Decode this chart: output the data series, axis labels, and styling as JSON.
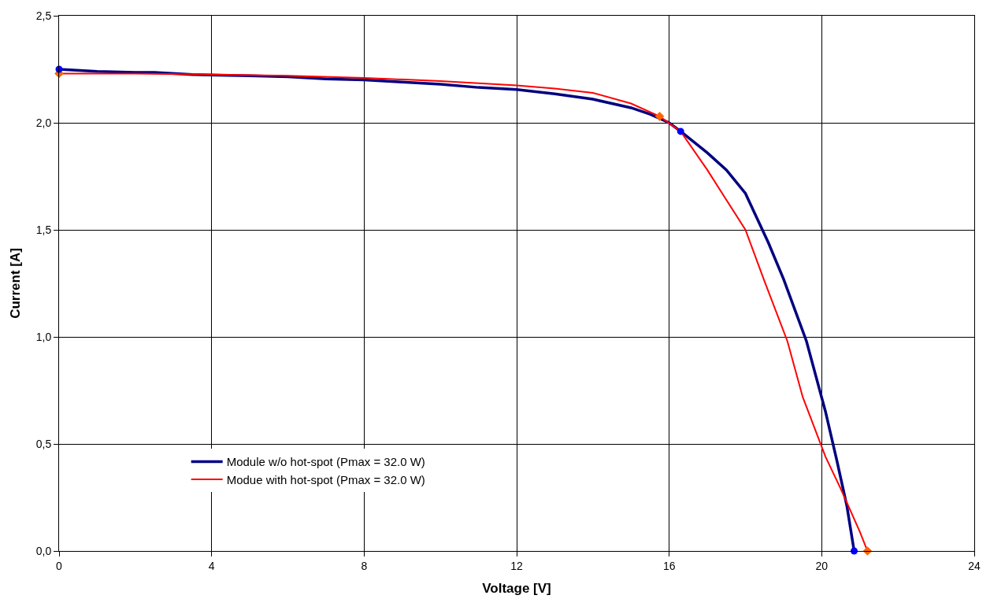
{
  "chart_data": {
    "type": "line",
    "xlabel": "Voltage [V]",
    "ylabel": "Current [A]",
    "xlim": [
      0,
      24
    ],
    "xticks": [
      0,
      4,
      8,
      12,
      16,
      20,
      24
    ],
    "ylim": [
      0,
      2.5
    ],
    "yticks": [
      {
        "value": 0,
        "label": "0,0"
      },
      {
        "value": 0.5,
        "label": "0,5"
      },
      {
        "value": 1,
        "label": "1,0"
      },
      {
        "value": 1.5,
        "label": "1,5"
      },
      {
        "value": 2,
        "label": "2,0"
      },
      {
        "value": 2.5,
        "label": "2,5"
      }
    ],
    "grid": true,
    "legend": "bottom left",
    "marker": "none",
    "line_style": "solid",
    "series": [
      {
        "name": "Module w/o hot-spot (Pmax = 32.0 W)",
        "color": "#000080",
        "x": [
          0,
          1,
          2,
          2.5,
          3.5,
          5,
          6,
          7,
          8,
          9,
          10,
          11,
          12,
          13,
          14,
          15,
          15.5,
          16,
          16.3,
          17,
          17.5,
          18,
          18.6,
          19,
          19.6,
          20.1,
          20.4,
          20.66,
          20.85
        ],
        "values": [
          2.25,
          2.24,
          2.235,
          2.235,
          2.225,
          2.22,
          2.215,
          2.205,
          2.2,
          2.19,
          2.18,
          2.165,
          2.155,
          2.135,
          2.11,
          2.07,
          2.04,
          2.0,
          1.96,
          1.86,
          1.78,
          1.67,
          1.44,
          1.27,
          0.98,
          0.65,
          0.42,
          0.21,
          0
        ]
      },
      {
        "name": "Modue with hot-spot (Pmax = 32.0 W)",
        "color": "#ff0000",
        "x": [
          0,
          2,
          4,
          6,
          8,
          10,
          11,
          12,
          13,
          14,
          15,
          15.75,
          16.3,
          17,
          17.5,
          18,
          18.5,
          19.1,
          19.5,
          20.1,
          20.5,
          21,
          21.2
        ],
        "values": [
          2.23,
          2.23,
          2.225,
          2.22,
          2.21,
          2.195,
          2.185,
          2.175,
          2.16,
          2.14,
          2.09,
          2.03,
          1.96,
          1.78,
          1.64,
          1.5,
          1.26,
          0.98,
          0.72,
          0.44,
          0.29,
          0.09,
          0
        ]
      },
      {
        "type": "scatter",
        "marker": "diamond",
        "color": "#ff6600",
        "x": [
          0,
          15.75,
          21.2
        ],
        "values": [
          2.23,
          2.03,
          0
        ]
      },
      {
        "type": "scatter",
        "marker": "circle",
        "color": "#0000ff",
        "x": [
          0,
          16.3,
          20.85
        ],
        "values": [
          2.25,
          1.96,
          0
        ]
      }
    ]
  }
}
